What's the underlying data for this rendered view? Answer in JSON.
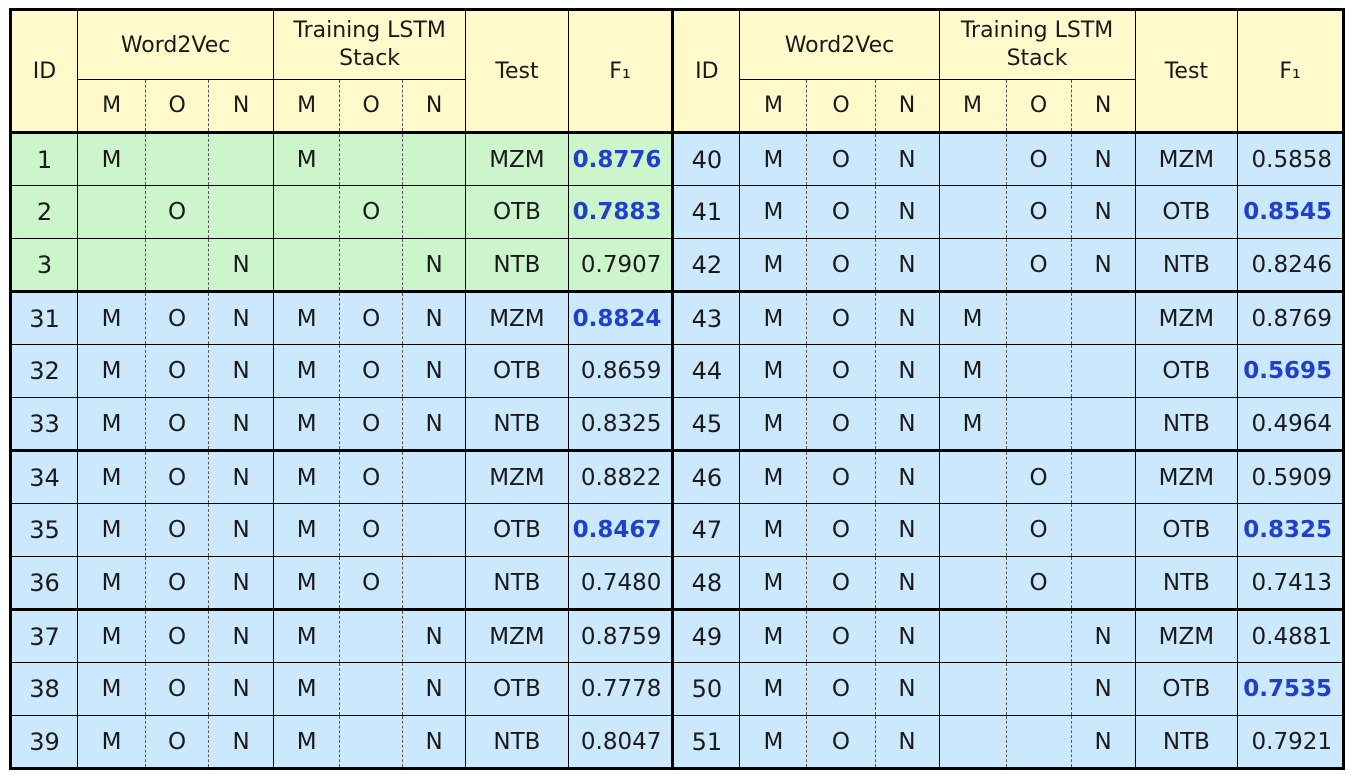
{
  "header": {
    "id_label": "ID",
    "word2vec_label": "Word2Vec",
    "training_label": "Training LSTM Stack",
    "test_label": "Test",
    "f1_label": "F₁",
    "sub_labels": [
      "M",
      "O",
      "N"
    ]
  },
  "left_groups": [
    [
      {
        "id": "1",
        "w2v": [
          "M",
          "",
          ""
        ],
        "train": [
          "M",
          "",
          ""
        ],
        "test": "MZM",
        "f1": "0.8776",
        "bold": true,
        "green": true
      },
      {
        "id": "2",
        "w2v": [
          "",
          "O",
          ""
        ],
        "train": [
          "",
          "O",
          ""
        ],
        "test": "OTB",
        "f1": "0.7883",
        "bold": true,
        "green": true
      },
      {
        "id": "3",
        "w2v": [
          "",
          "",
          "N"
        ],
        "train": [
          "",
          "",
          "N"
        ],
        "test": "NTB",
        "f1": "0.7907",
        "bold": false,
        "green": true
      }
    ],
    [
      {
        "id": "31",
        "w2v": [
          "M",
          "O",
          "N"
        ],
        "train": [
          "M",
          "O",
          "N"
        ],
        "test": "MZM",
        "f1": "0.8824",
        "bold": true
      },
      {
        "id": "32",
        "w2v": [
          "M",
          "O",
          "N"
        ],
        "train": [
          "M",
          "O",
          "N"
        ],
        "test": "OTB",
        "f1": "0.8659",
        "bold": false
      },
      {
        "id": "33",
        "w2v": [
          "M",
          "O",
          "N"
        ],
        "train": [
          "M",
          "O",
          "N"
        ],
        "test": "NTB",
        "f1": "0.8325",
        "bold": false
      }
    ],
    [
      {
        "id": "34",
        "w2v": [
          "M",
          "O",
          "N"
        ],
        "train": [
          "M",
          "O",
          ""
        ],
        "test": "MZM",
        "f1": "0.8822",
        "bold": false
      },
      {
        "id": "35",
        "w2v": [
          "M",
          "O",
          "N"
        ],
        "train": [
          "M",
          "O",
          ""
        ],
        "test": "OTB",
        "f1": "0.8467",
        "bold": true
      },
      {
        "id": "36",
        "w2v": [
          "M",
          "O",
          "N"
        ],
        "train": [
          "M",
          "O",
          ""
        ],
        "test": "NTB",
        "f1": "0.7480",
        "bold": false
      }
    ],
    [
      {
        "id": "37",
        "w2v": [
          "M",
          "O",
          "N"
        ],
        "train": [
          "M",
          "",
          "N"
        ],
        "test": "MZM",
        "f1": "0.8759",
        "bold": false
      },
      {
        "id": "38",
        "w2v": [
          "M",
          "O",
          "N"
        ],
        "train": [
          "M",
          "",
          "N"
        ],
        "test": "OTB",
        "f1": "0.7778",
        "bold": false
      },
      {
        "id": "39",
        "w2v": [
          "M",
          "O",
          "N"
        ],
        "train": [
          "M",
          "",
          "N"
        ],
        "test": "NTB",
        "f1": "0.8047",
        "bold": false
      }
    ]
  ],
  "right_groups": [
    [
      {
        "id": "40",
        "w2v": [
          "M",
          "O",
          "N"
        ],
        "train": [
          "",
          "O",
          "N"
        ],
        "test": "MZM",
        "f1": "0.5858",
        "bold": false
      },
      {
        "id": "41",
        "w2v": [
          "M",
          "O",
          "N"
        ],
        "train": [
          "",
          "O",
          "N"
        ],
        "test": "OTB",
        "f1": "0.8545",
        "bold": true
      },
      {
        "id": "42",
        "w2v": [
          "M",
          "O",
          "N"
        ],
        "train": [
          "",
          "O",
          "N"
        ],
        "test": "NTB",
        "f1": "0.8246",
        "bold": false
      }
    ],
    [
      {
        "id": "43",
        "w2v": [
          "M",
          "O",
          "N"
        ],
        "train": [
          "M",
          "",
          ""
        ],
        "test": "MZM",
        "f1": "0.8769",
        "bold": false
      },
      {
        "id": "44",
        "w2v": [
          "M",
          "O",
          "N"
        ],
        "train": [
          "M",
          "",
          ""
        ],
        "test": "OTB",
        "f1": "0.5695",
        "bold": true
      },
      {
        "id": "45",
        "w2v": [
          "M",
          "O",
          "N"
        ],
        "train": [
          "M",
          "",
          ""
        ],
        "test": "NTB",
        "f1": "0.4964",
        "bold": false
      }
    ],
    [
      {
        "id": "46",
        "w2v": [
          "M",
          "O",
          "N"
        ],
        "train": [
          "",
          "O",
          ""
        ],
        "test": "MZM",
        "f1": "0.5909",
        "bold": false
      },
      {
        "id": "47",
        "w2v": [
          "M",
          "O",
          "N"
        ],
        "train": [
          "",
          "O",
          ""
        ],
        "test": "OTB",
        "f1": "0.8325",
        "bold": true
      },
      {
        "id": "48",
        "w2v": [
          "M",
          "O",
          "N"
        ],
        "train": [
          "",
          "O",
          ""
        ],
        "test": "NTB",
        "f1": "0.7413",
        "bold": false
      }
    ],
    [
      {
        "id": "49",
        "w2v": [
          "M",
          "O",
          "N"
        ],
        "train": [
          "",
          "",
          "N"
        ],
        "test": "MZM",
        "f1": "0.4881",
        "bold": false
      },
      {
        "id": "50",
        "w2v": [
          "M",
          "O",
          "N"
        ],
        "train": [
          "",
          "",
          "N"
        ],
        "test": "OTB",
        "f1": "0.7535",
        "bold": true
      },
      {
        "id": "51",
        "w2v": [
          "M",
          "O",
          "N"
        ],
        "train": [
          "",
          "",
          "N"
        ],
        "test": "NTB",
        "f1": "0.7921",
        "bold": false
      }
    ]
  ],
  "colors": {
    "header_bg": "#fff9cc",
    "green_row_bg": "#ccf5cc",
    "blue_row_bg": "#cce8fc",
    "bold_value": "#1f3fcc",
    "border": "#000000"
  }
}
